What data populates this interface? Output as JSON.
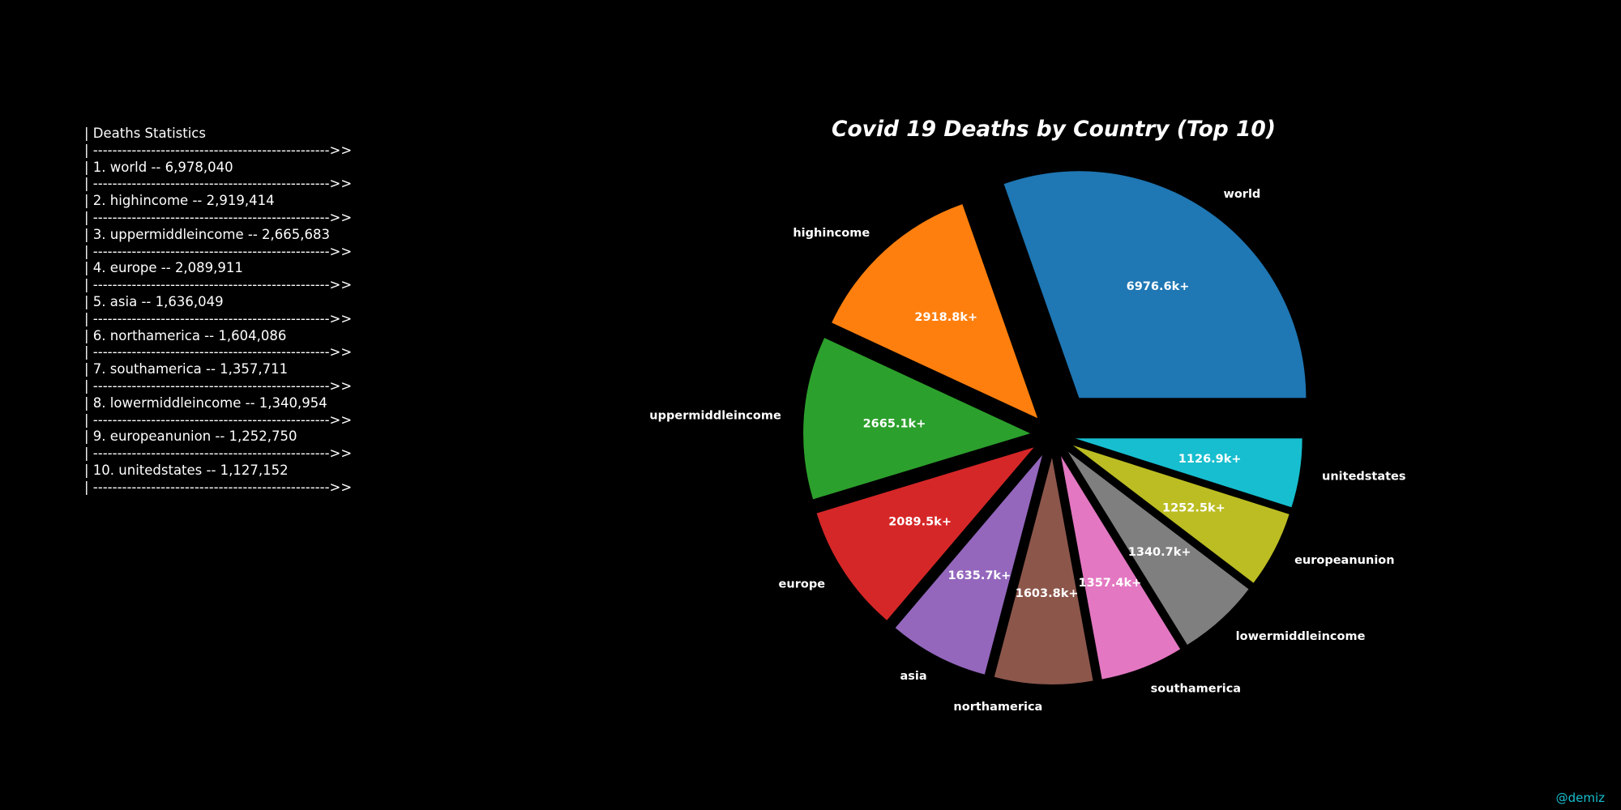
{
  "stats": {
    "header": "| Deaths Statistics",
    "divider": "| ------------------------------------------------->>",
    "items": [
      "| 1. world -- 6,978,040",
      "| 2. highincome -- 2,919,414",
      "| 3. uppermiddleincome -- 2,665,683",
      "| 4. europe -- 2,089,911",
      "| 5. asia -- 1,636,049",
      "| 6. northamerica -- 1,604,086",
      "| 7. southamerica -- 1,357,711",
      "| 8. lowermiddleincome -- 1,340,954",
      "| 9. europeanunion -- 1,252,750",
      "| 10. unitedstates -- 1,127,152"
    ]
  },
  "watermark": "@demiz",
  "chart_data": {
    "type": "pie",
    "title": "Covid 19 Deaths by Country (Top 10)",
    "categories": [
      "world",
      "highincome",
      "uppermiddleincome",
      "europe",
      "asia",
      "northamerica",
      "southamerica",
      "lowermiddleincome",
      "europeanunion",
      "unitedstates"
    ],
    "values": [
      6978040,
      2919414,
      2665683,
      2089911,
      1636049,
      1604086,
      1357711,
      1340954,
      1252750,
      1127152
    ],
    "value_labels": [
      "6976.6k+",
      "2918.8k+",
      "2665.1k+",
      "2089.5k+",
      "1635.7k+",
      "1603.8k+",
      "1357.4k+",
      "1340.7k+",
      "1252.5k+",
      "1126.9k+"
    ],
    "colors": [
      "#1f77b4",
      "#ff7f0e",
      "#2ca02c",
      "#d62728",
      "#9467bd",
      "#8c564b",
      "#e377c2",
      "#7f7f7f",
      "#bcbd22",
      "#17becf"
    ],
    "explode": [
      0.2,
      0.1,
      0.1,
      0.1,
      0.1,
      0.1,
      0.1,
      0.1,
      0.1,
      0.1
    ],
    "start_angle": 0,
    "legend": "none"
  }
}
